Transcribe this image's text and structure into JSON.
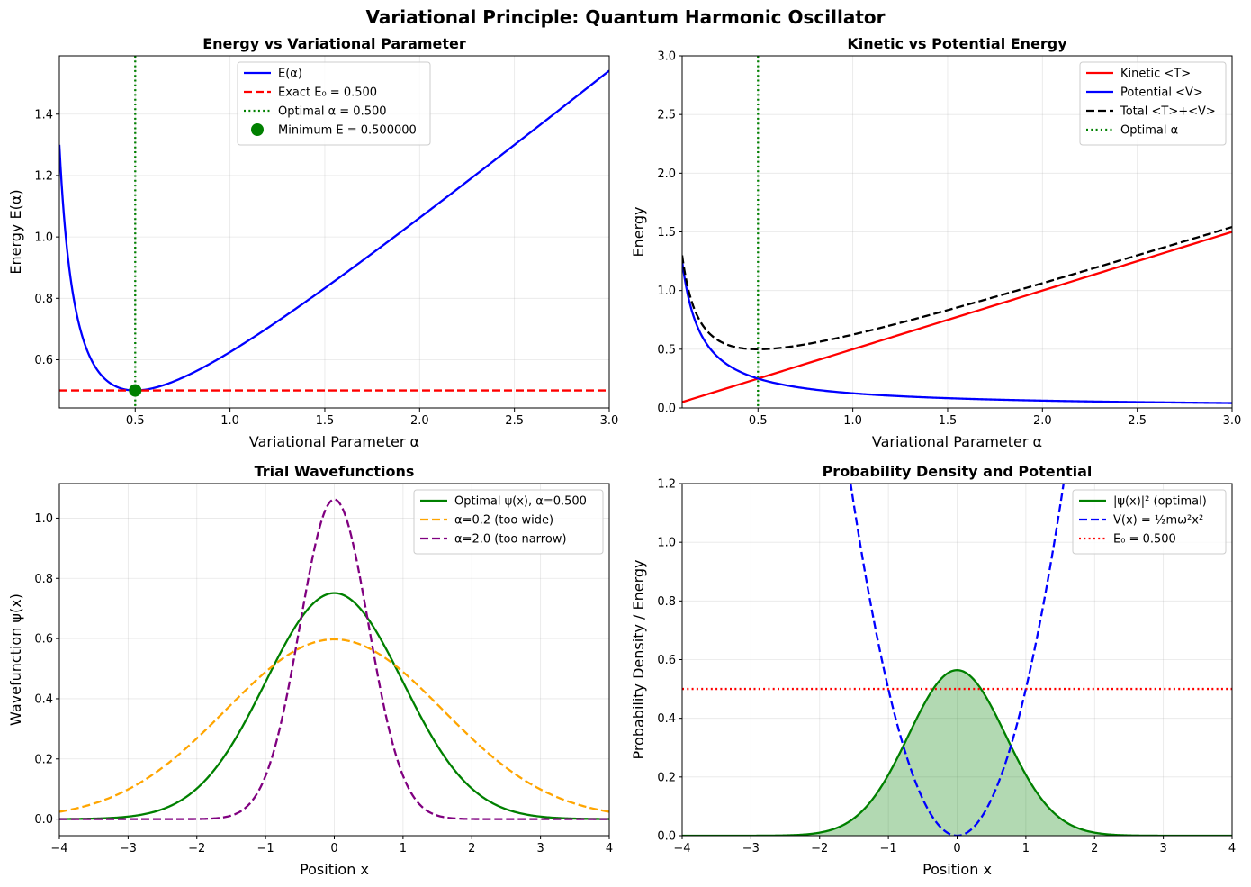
{
  "figure": {
    "suptitle": "Variational Principle: Quantum Harmonic Oscillator"
  },
  "chart_data": [
    {
      "type": "line",
      "title": "Energy vs Variational Parameter",
      "xlabel": "Variational Parameter α",
      "ylabel": "Energy E(α)",
      "xlim": [
        0.1,
        3.0
      ],
      "ylim": [
        0.443,
        1.59
      ],
      "xticks": [
        0.5,
        1.0,
        1.5,
        2.0,
        2.5,
        3.0
      ],
      "xtick_labels": [
        "0.5",
        "1.0",
        "1.5",
        "2.0",
        "2.5",
        "3.0"
      ],
      "yticks": [
        0.6,
        0.8,
        1.0,
        1.2,
        1.4
      ],
      "ytick_labels": [
        "0.6",
        "0.8",
        "1.0",
        "1.2",
        "1.4"
      ],
      "grid": true,
      "legend_position": "upper-center",
      "series": [
        {
          "name": "E(α)",
          "color": "#0000ff",
          "style": "solid",
          "func": "energy",
          "x_range": [
            0.1,
            3.0
          ]
        },
        {
          "name": "Exact E₀ = 0.500",
          "color": "#ff0000",
          "style": "dashed",
          "hline": 0.5
        },
        {
          "name": "Optimal α = 0.500",
          "color": "#008000",
          "style": "dotted",
          "vline": 0.5
        },
        {
          "name": "Minimum E = 0.500000",
          "color": "#008000",
          "style": "marker",
          "point": [
            0.5,
            0.5
          ]
        }
      ]
    },
    {
      "type": "line",
      "title": "Kinetic vs Potential Energy",
      "xlabel": "Variational Parameter α",
      "ylabel": "Energy",
      "xlim": [
        0.1,
        3.0
      ],
      "ylim": [
        0.0,
        3.0
      ],
      "xticks": [
        0.5,
        1.0,
        1.5,
        2.0,
        2.5,
        3.0
      ],
      "xtick_labels": [
        "0.5",
        "1.0",
        "1.5",
        "2.0",
        "2.5",
        "3.0"
      ],
      "yticks": [
        0.0,
        0.5,
        1.0,
        1.5,
        2.0,
        2.5,
        3.0
      ],
      "ytick_labels": [
        "0.0",
        "0.5",
        "1.0",
        "1.5",
        "2.0",
        "2.5",
        "3.0"
      ],
      "grid": true,
      "legend_position": "top-right",
      "series": [
        {
          "name": "Kinetic <T>",
          "color": "#ff0000",
          "style": "solid",
          "func": "kinetic",
          "x_range": [
            0.1,
            3.0
          ]
        },
        {
          "name": "Potential <V>",
          "color": "#0000ff",
          "style": "solid",
          "func": "potential",
          "x_range": [
            0.1,
            3.0
          ]
        },
        {
          "name": "Total <T>+<V>",
          "color": "#000000",
          "style": "dashed",
          "func": "energy",
          "x_range": [
            0.1,
            3.0
          ]
        },
        {
          "name": "Optimal α",
          "color": "#008000",
          "style": "dotted",
          "vline": 0.5
        }
      ]
    },
    {
      "type": "line",
      "title": "Trial Wavefunctions",
      "xlabel": "Position x",
      "ylabel": "Wavefunction ψ(x)",
      "xlim": [
        -4,
        4
      ],
      "ylim": [
        -0.055,
        1.115
      ],
      "xticks": [
        -4,
        -3,
        -2,
        -1,
        0,
        1,
        2,
        3,
        4
      ],
      "xtick_labels": [
        "−4",
        "−3",
        "−2",
        "−1",
        "0",
        "1",
        "2",
        "3",
        "4"
      ],
      "yticks": [
        0.0,
        0.2,
        0.4,
        0.6,
        0.8,
        1.0
      ],
      "ytick_labels": [
        "0.0",
        "0.2",
        "0.4",
        "0.6",
        "0.8",
        "1.0"
      ],
      "grid": true,
      "legend_position": "top-right",
      "series": [
        {
          "name": "Optimal ψ(x), α=0.500",
          "color": "#008000",
          "style": "solid",
          "func": "psi",
          "alpha": 0.5,
          "x_range": [
            -4,
            4
          ]
        },
        {
          "name": "α=0.2 (too wide)",
          "color": "#ffa500",
          "style": "dashed",
          "func": "psi",
          "alpha": 0.2,
          "x_range": [
            -4,
            4
          ]
        },
        {
          "name": "α=2.0 (too narrow)",
          "color": "#800080",
          "style": "dashed",
          "func": "psi",
          "alpha": 2.0,
          "x_range": [
            -4,
            4
          ]
        }
      ]
    },
    {
      "type": "area",
      "title": "Probability Density and Potential",
      "xlabel": "Position x",
      "ylabel": "Probability Density / Energy",
      "xlim": [
        -4,
        4
      ],
      "ylim": [
        0.0,
        1.2
      ],
      "xticks": [
        -4,
        -3,
        -2,
        -1,
        0,
        1,
        2,
        3,
        4
      ],
      "xtick_labels": [
        "−4",
        "−3",
        "−2",
        "−1",
        "0",
        "1",
        "2",
        "3",
        "4"
      ],
      "yticks": [
        0.0,
        0.2,
        0.4,
        0.6,
        0.8,
        1.0,
        1.2
      ],
      "ytick_labels": [
        "0.0",
        "0.2",
        "0.4",
        "0.6",
        "0.8",
        "1.0",
        "1.2"
      ],
      "grid": true,
      "legend_position": "top-right",
      "series": [
        {
          "name": "|ψ(x)|² (optimal)",
          "color": "#008000",
          "style": "solid",
          "func": "psi2",
          "alpha": 0.5,
          "fill": true,
          "x_range": [
            -4,
            4
          ]
        },
        {
          "name": "V(x) = ½mω²x²",
          "color": "#0000ff",
          "style": "dashed",
          "func": "potx",
          "x_range": [
            -4,
            4
          ]
        },
        {
          "name": "E₀ = 0.500",
          "color": "#ff0000",
          "style": "dotted",
          "hline": 0.5
        }
      ]
    }
  ]
}
